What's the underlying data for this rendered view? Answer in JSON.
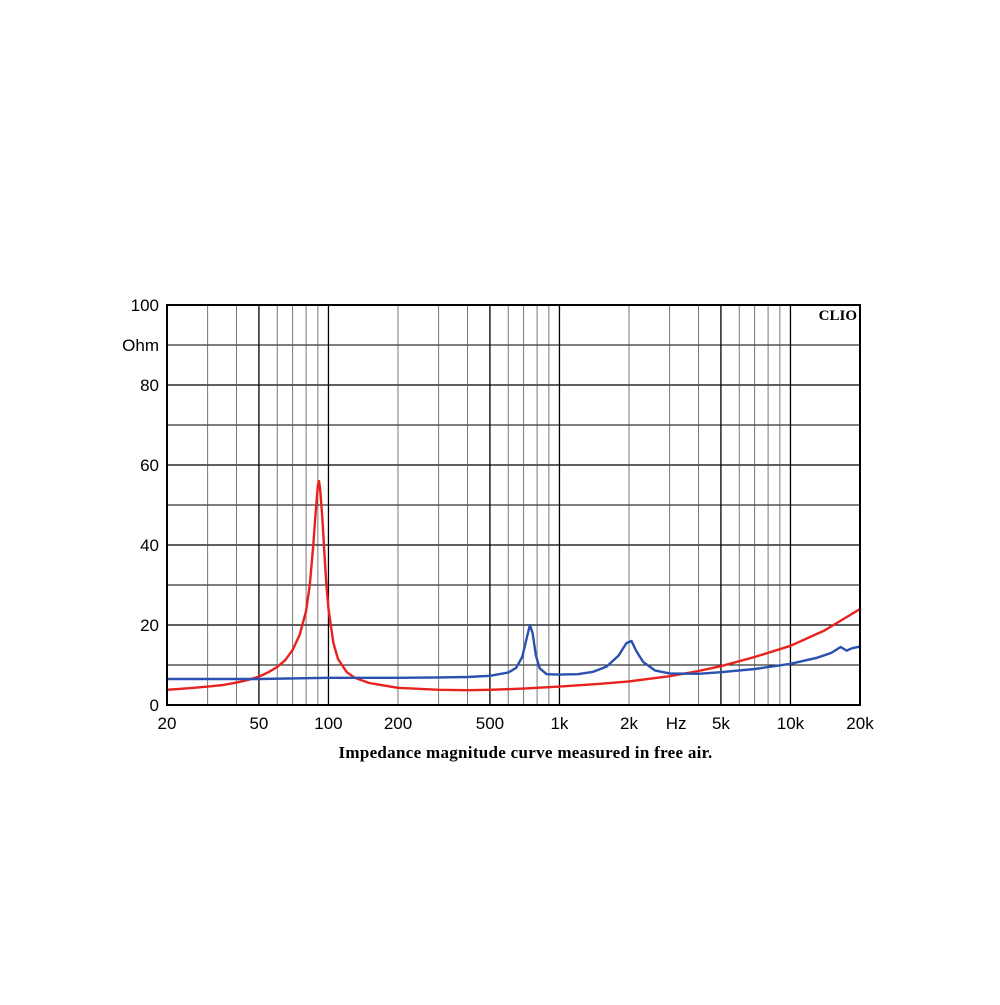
{
  "chart_data": {
    "type": "line",
    "caption": "Impedance magnitude curve measured in free air.",
    "brand": "CLIO",
    "x_scale": "log",
    "xlim": [
      20,
      20000
    ],
    "ylim": [
      0,
      100
    ],
    "grid": true,
    "x_tick_labels": [
      {
        "value": 20,
        "label": "20"
      },
      {
        "value": 50,
        "label": "50"
      },
      {
        "value": 100,
        "label": "100"
      },
      {
        "value": 200,
        "label": "200"
      },
      {
        "value": 500,
        "label": "500"
      },
      {
        "value": 1000,
        "label": "1k"
      },
      {
        "value": 2000,
        "label": "2k"
      },
      {
        "value": 5000,
        "label": "5k"
      },
      {
        "value": 10000,
        "label": "10k"
      },
      {
        "value": 20000,
        "label": "20k"
      }
    ],
    "x_unit_label": "Hz",
    "y_tick_labels": [
      {
        "value": 0,
        "label": "0"
      },
      {
        "value": 20,
        "label": "20"
      },
      {
        "value": 40,
        "label": "40"
      },
      {
        "value": 60,
        "label": "60"
      },
      {
        "value": 80,
        "label": "80"
      },
      {
        "value": 100,
        "label": "100"
      }
    ],
    "y_unit_label": "Ohm",
    "series": [
      {
        "color": "#e8231f",
        "points": [
          [
            20,
            3.8
          ],
          [
            25,
            4.2
          ],
          [
            30,
            4.6
          ],
          [
            35,
            5.0
          ],
          [
            40,
            5.6
          ],
          [
            45,
            6.3
          ],
          [
            50,
            7.1
          ],
          [
            55,
            8.2
          ],
          [
            60,
            9.5
          ],
          [
            65,
            11.2
          ],
          [
            70,
            13.8
          ],
          [
            75,
            17.5
          ],
          [
            80,
            23.5
          ],
          [
            83,
            30
          ],
          [
            86,
            40
          ],
          [
            88,
            48
          ],
          [
            90,
            55
          ],
          [
            91,
            56
          ],
          [
            92,
            54
          ],
          [
            94,
            47
          ],
          [
            96,
            38
          ],
          [
            98,
            30
          ],
          [
            100,
            24
          ],
          [
            105,
            15.5
          ],
          [
            110,
            11.5
          ],
          [
            120,
            8.2
          ],
          [
            130,
            6.8
          ],
          [
            150,
            5.5
          ],
          [
            200,
            4.3
          ],
          [
            300,
            3.8
          ],
          [
            400,
            3.7
          ],
          [
            500,
            3.8
          ],
          [
            700,
            4.1
          ],
          [
            1000,
            4.6
          ],
          [
            1500,
            5.3
          ],
          [
            2000,
            5.9
          ],
          [
            3000,
            7.2
          ],
          [
            4000,
            8.5
          ],
          [
            5000,
            9.7
          ],
          [
            7000,
            12.0
          ],
          [
            10000,
            14.8
          ],
          [
            14000,
            18.6
          ],
          [
            20000,
            24.0
          ]
        ]
      },
      {
        "color": "#2a50b0",
        "points": [
          [
            20,
            6.5
          ],
          [
            50,
            6.5
          ],
          [
            100,
            6.8
          ],
          [
            200,
            6.8
          ],
          [
            300,
            6.9
          ],
          [
            400,
            7.0
          ],
          [
            500,
            7.3
          ],
          [
            600,
            8.1
          ],
          [
            650,
            9.3
          ],
          [
            690,
            12.0
          ],
          [
            720,
            16.5
          ],
          [
            745,
            20.0
          ],
          [
            765,
            18.0
          ],
          [
            790,
            12.5
          ],
          [
            820,
            9.2
          ],
          [
            880,
            7.7
          ],
          [
            1000,
            7.6
          ],
          [
            1200,
            7.7
          ],
          [
            1400,
            8.3
          ],
          [
            1600,
            9.6
          ],
          [
            1800,
            12.3
          ],
          [
            1950,
            15.5
          ],
          [
            2050,
            16.0
          ],
          [
            2150,
            13.5
          ],
          [
            2300,
            10.8
          ],
          [
            2600,
            8.6
          ],
          [
            3000,
            7.9
          ],
          [
            4000,
            7.8
          ],
          [
            5000,
            8.2
          ],
          [
            7000,
            9.0
          ],
          [
            10000,
            10.3
          ],
          [
            13000,
            11.8
          ],
          [
            15000,
            13.0
          ],
          [
            16500,
            14.5
          ],
          [
            17500,
            13.6
          ],
          [
            18500,
            14.2
          ],
          [
            20000,
            14.6
          ]
        ]
      }
    ]
  }
}
